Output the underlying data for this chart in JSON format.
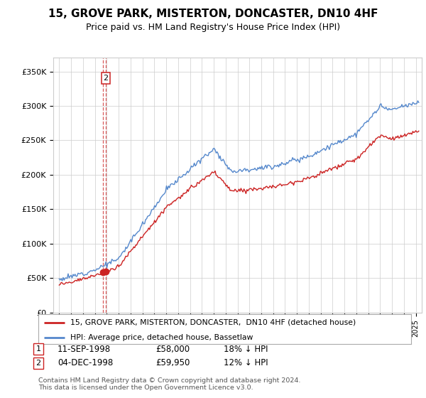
{
  "title": "15, GROVE PARK, MISTERTON, DONCASTER, DN10 4HF",
  "subtitle": "Price paid vs. HM Land Registry's House Price Index (HPI)",
  "title_fontsize": 11,
  "subtitle_fontsize": 9,
  "ylabel_ticks": [
    "£0",
    "£50K",
    "£100K",
    "£150K",
    "£200K",
    "£250K",
    "£300K",
    "£350K"
  ],
  "ylabel_values": [
    0,
    50000,
    100000,
    150000,
    200000,
    250000,
    300000,
    350000
  ],
  "ylim": [
    0,
    370000
  ],
  "xlim_start": 1994.5,
  "xlim_end": 2025.5,
  "hpi_color": "#5588cc",
  "price_color": "#cc2222",
  "dashed_color": "#cc2222",
  "sale1_x": 1998.69,
  "sale1_y": 58000,
  "sale2_x": 1998.92,
  "sale2_y": 59950,
  "transaction1": {
    "label": "1",
    "date": "11-SEP-1998",
    "price": "£58,000",
    "hpi_diff": "18% ↓ HPI"
  },
  "transaction2": {
    "label": "2",
    "date": "04-DEC-1998",
    "price": "£59,950",
    "hpi_diff": "12% ↓ HPI"
  },
  "legend_line1": "15, GROVE PARK, MISTERTON, DONCASTER,  DN10 4HF (detached house)",
  "legend_line2": "HPI: Average price, detached house, Bassetlaw",
  "footnote": "Contains HM Land Registry data © Crown copyright and database right 2024.\nThis data is licensed under the Open Government Licence v3.0.",
  "background_color": "#ffffff",
  "grid_color": "#cccccc"
}
